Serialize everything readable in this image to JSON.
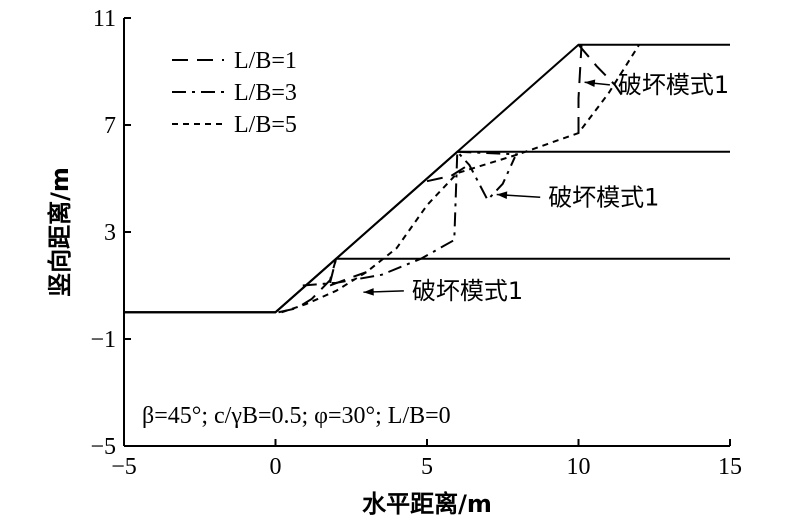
{
  "chart_data": {
    "type": "line",
    "xlabel": "水平距离/m",
    "ylabel": "竖向距离/m",
    "xlim": [
      -5,
      15
    ],
    "ylim": [
      -5,
      11
    ],
    "xticks": [
      -5,
      0,
      5,
      10,
      15
    ],
    "yticks": [
      -5,
      -1,
      3,
      7,
      11
    ],
    "xtick_labels": [
      "−5",
      "0",
      "5",
      "10",
      "15"
    ],
    "ytick_labels": [
      "−5",
      "−1",
      "3",
      "7",
      "11"
    ],
    "grid": false,
    "legend_position": "top-left",
    "slopes": [
      {
        "x": [
          -5,
          0,
          2,
          15
        ],
        "y": [
          0,
          0,
          2,
          2
        ]
      },
      {
        "x": [
          -5,
          0,
          6,
          15
        ],
        "y": [
          0,
          0,
          6,
          6
        ]
      },
      {
        "x": [
          -5,
          0,
          10,
          15
        ],
        "y": [
          0,
          0,
          10,
          10
        ]
      }
    ],
    "series": [
      {
        "name": "L/B=1",
        "style": "dash",
        "x": [
          0.1,
          0.7,
          1.2,
          1.8,
          2.0
        ],
        "y": [
          0.0,
          0.15,
          0.5,
          1.2,
          2.0
        ]
      },
      {
        "name": "L/B=3",
        "style": "dashdot",
        "x": [
          0.9,
          2.0,
          3.5,
          4.8,
          5.9,
          6.0,
          6.4,
          7.0,
          7.5,
          7.9
        ],
        "y": [
          1.0,
          1.1,
          1.4,
          2.0,
          2.7,
          6.0,
          5.5,
          4.2,
          4.8,
          5.8
        ]
      },
      {
        "name": "L/B=5",
        "style": "shortdash",
        "x": [
          0.2,
          1.0,
          2.0,
          3.0,
          4.0,
          5.0,
          6.0,
          8.0,
          10.0,
          11.0,
          12.0
        ],
        "y": [
          0.0,
          0.3,
          0.8,
          1.5,
          2.4,
          4.0,
          5.2,
          5.9,
          6.7,
          8.2,
          10.0
        ]
      }
    ],
    "extra_segments": [
      {
        "style": "dashdot",
        "x": [
          1.8,
          2.0
        ],
        "y": [
          1.1,
          2.0
        ]
      },
      {
        "style": "dashdot",
        "x": [
          6.0,
          8.0
        ],
        "y": [
          6.0,
          5.9
        ]
      },
      {
        "style": "dash",
        "x": [
          1.8,
          2.5,
          3.0
        ],
        "y": [
          1.0,
          1.3,
          1.5
        ]
      },
      {
        "style": "dash",
        "x": [
          5.0,
          5.8,
          6.5
        ],
        "y": [
          4.9,
          5.1,
          5.6
        ]
      },
      {
        "style": "dash",
        "x": [
          10.0,
          10.0,
          10.1
        ],
        "y": [
          6.7,
          8.0,
          10.0
        ]
      },
      {
        "style": "dash",
        "x": [
          10.0,
          10.6,
          11.2,
          11.5
        ],
        "y": [
          10.0,
          9.2,
          8.5,
          8.0
        ]
      }
    ],
    "annotations": [
      {
        "text": "破坏模式1",
        "target_x": 10.2,
        "target_y": 8.6,
        "text_x": 11.3,
        "text_y": 8.2
      },
      {
        "text": "破坏模式1",
        "target_x": 7.3,
        "target_y": 4.4,
        "text_x": 9.0,
        "text_y": 4.0
      },
      {
        "text": "破坏模式1",
        "target_x": 2.9,
        "target_y": 0.75,
        "text_x": 4.5,
        "text_y": 0.5
      }
    ],
    "legend": [
      {
        "label": "L/B=1",
        "style": "dash"
      },
      {
        "label": "L/B=3",
        "style": "dashdot"
      },
      {
        "label": "L/B=5",
        "style": "shortdash"
      }
    ],
    "note": "β=45°; c/γB=0.5; φ=30°; L/B=0"
  }
}
